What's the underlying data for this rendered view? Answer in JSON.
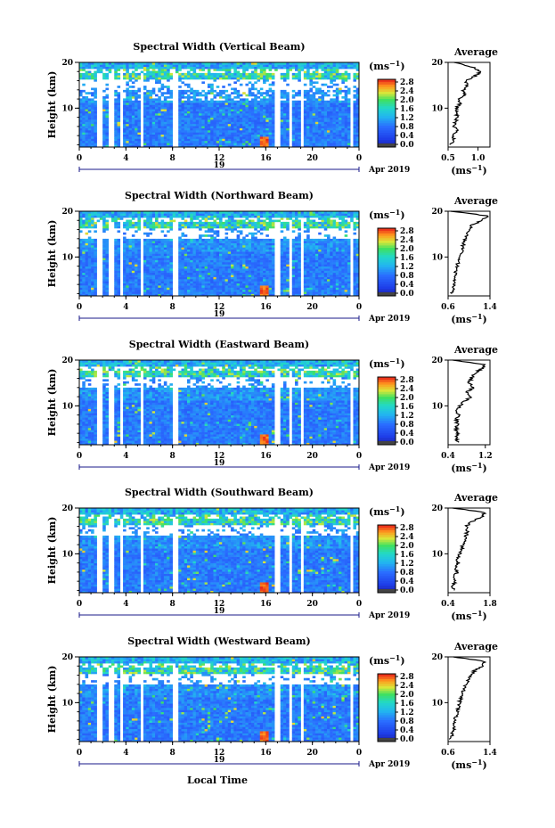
{
  "figure": {
    "date_label": "Apr 2019",
    "xlabel": "Local Time",
    "day_label": "19",
    "time_ticks": [
      "0",
      "4",
      "8",
      "12",
      "16",
      "20",
      "0"
    ],
    "height_ticks": [
      "10",
      "20"
    ],
    "ylabel": "Height (km)",
    "colorbar_unit": "(ms",
    "colorbar_unit_exp": "−1",
    "colorbar_ticks": [
      "0.0",
      "0.4",
      "0.8",
      "1.2",
      "1.6",
      "2.0",
      "2.4",
      "2.8"
    ],
    "avg_title": "Average",
    "avg_unit": "(ms",
    "avg_unit_exp": "−1"
  },
  "panels": [
    {
      "title": "Spectral Width (Vertical Beam)",
      "avg_xticks": [
        "0.5",
        "1.0"
      ],
      "avg_xlim": [
        0.5,
        1.2
      ]
    },
    {
      "title": "Spectral Width (Northward Beam)",
      "avg_xticks": [
        "0.6",
        "1.4"
      ],
      "avg_xlim": [
        0.6,
        1.4
      ]
    },
    {
      "title": "Spectral Width (Eastward Beam)",
      "avg_xticks": [
        "0.4",
        "1.2"
      ],
      "avg_xlim": [
        0.4,
        1.3
      ]
    },
    {
      "title": "Spectral Width (Southward Beam)",
      "avg_xticks": [
        "0.4",
        "1.8"
      ],
      "avg_xlim": [
        0.4,
        1.8
      ]
    },
    {
      "title": "Spectral Width (Westward Beam)",
      "avg_xticks": [
        "0.6",
        "1.4"
      ],
      "avg_xlim": [
        0.6,
        1.4
      ]
    }
  ],
  "chart_data": [
    {
      "type": "heatmap",
      "title": "Spectral Width (Vertical Beam)",
      "xlabel": "Local Time",
      "ylabel": "Height (km)",
      "xlim": [
        0,
        24
      ],
      "ylim": [
        1.5,
        20
      ],
      "zlim": [
        0.0,
        2.8
      ],
      "z_unit": "ms-1"
    },
    {
      "type": "line",
      "title": "Average",
      "xlabel": "ms-1",
      "ylabel": "Height (km)",
      "xlim": [
        0.5,
        1.2
      ],
      "ylim": [
        1.5,
        20
      ],
      "y": [
        2,
        3,
        4,
        5,
        6,
        7,
        8,
        9,
        10,
        11,
        12,
        13,
        14,
        15,
        16,
        17,
        18,
        19,
        20
      ],
      "x": [
        0.55,
        0.6,
        0.58,
        0.65,
        0.6,
        0.62,
        0.66,
        0.63,
        0.64,
        0.7,
        0.68,
        0.78,
        0.75,
        0.82,
        0.8,
        0.95,
        1.05,
        0.9,
        0.6
      ]
    },
    {
      "type": "heatmap",
      "title": "Spectral Width (Northward Beam)",
      "xlabel": "Local Time",
      "ylabel": "Height (km)",
      "xlim": [
        0,
        24
      ],
      "ylim": [
        1.5,
        20
      ],
      "zlim": [
        0.0,
        2.8
      ],
      "z_unit": "ms-1"
    },
    {
      "type": "line",
      "title": "Average",
      "xlabel": "ms-1",
      "ylabel": "Height (km)",
      "xlim": [
        0.6,
        1.4
      ],
      "ylim": [
        1.5,
        20
      ],
      "y": [
        2,
        3,
        4,
        5,
        6,
        7,
        8,
        9,
        10,
        11,
        12,
        13,
        14,
        15,
        16,
        17,
        18,
        19,
        20
      ],
      "x": [
        0.68,
        0.7,
        0.72,
        0.72,
        0.74,
        0.75,
        0.77,
        0.8,
        0.82,
        0.85,
        0.87,
        0.9,
        0.93,
        0.95,
        1.0,
        1.05,
        1.25,
        1.35,
        0.65
      ]
    },
    {
      "type": "heatmap",
      "title": "Spectral Width (Eastward Beam)",
      "xlabel": "Local Time",
      "ylabel": "Height (km)",
      "xlim": [
        0,
        24
      ],
      "ylim": [
        1.5,
        20
      ],
      "zlim": [
        0.0,
        2.8
      ],
      "z_unit": "ms-1"
    },
    {
      "type": "line",
      "title": "Average",
      "xlabel": "ms-1",
      "ylabel": "Height (km)",
      "xlim": [
        0.4,
        1.3
      ],
      "ylim": [
        1.5,
        20
      ],
      "y": [
        2,
        3,
        4,
        5,
        6,
        7,
        8,
        9,
        10,
        11,
        12,
        13,
        14,
        15,
        16,
        17,
        18,
        19,
        20
      ],
      "x": [
        0.6,
        0.58,
        0.6,
        0.57,
        0.6,
        0.58,
        0.62,
        0.6,
        0.65,
        0.75,
        0.9,
        0.8,
        0.95,
        0.85,
        0.9,
        0.95,
        1.1,
        1.2,
        0.5
      ]
    },
    {
      "type": "heatmap",
      "title": "Spectral Width (Southward Beam)",
      "xlabel": "Local Time",
      "ylabel": "Height (km)",
      "xlim": [
        0,
        24
      ],
      "ylim": [
        1.5,
        20
      ],
      "zlim": [
        0.0,
        2.8
      ],
      "z_unit": "ms-1"
    },
    {
      "type": "line",
      "title": "Average",
      "xlabel": "ms-1",
      "ylabel": "Height (km)",
      "xlim": [
        0.4,
        1.8
      ],
      "ylim": [
        1.5,
        20
      ],
      "y": [
        2,
        3,
        4,
        5,
        6,
        7,
        8,
        9,
        10,
        11,
        12,
        13,
        14,
        15,
        16,
        17,
        18,
        19,
        20
      ],
      "x": [
        0.6,
        0.55,
        0.65,
        0.6,
        0.7,
        0.62,
        0.75,
        0.7,
        0.8,
        0.85,
        0.9,
        0.95,
        1.0,
        1.05,
        1.0,
        1.2,
        1.5,
        1.65,
        0.55
      ]
    },
    {
      "type": "heatmap",
      "title": "Spectral Width (Westward Beam)",
      "xlabel": "Local Time",
      "ylabel": "Height (km)",
      "xlim": [
        0,
        24
      ],
      "ylim": [
        1.5,
        20
      ],
      "zlim": [
        0.0,
        2.8
      ],
      "z_unit": "ms-1"
    },
    {
      "type": "line",
      "title": "Average",
      "xlabel": "ms-1",
      "ylabel": "Height (km)",
      "xlim": [
        0.6,
        1.4
      ],
      "ylim": [
        1.5,
        20
      ],
      "y": [
        2,
        3,
        4,
        5,
        6,
        7,
        8,
        9,
        10,
        11,
        12,
        13,
        14,
        15,
        16,
        17,
        18,
        19,
        20
      ],
      "x": [
        0.65,
        0.68,
        0.7,
        0.72,
        0.73,
        0.75,
        0.78,
        0.8,
        0.82,
        0.84,
        0.88,
        0.9,
        0.95,
        0.98,
        1.05,
        1.1,
        1.25,
        1.3,
        0.7
      ]
    }
  ]
}
